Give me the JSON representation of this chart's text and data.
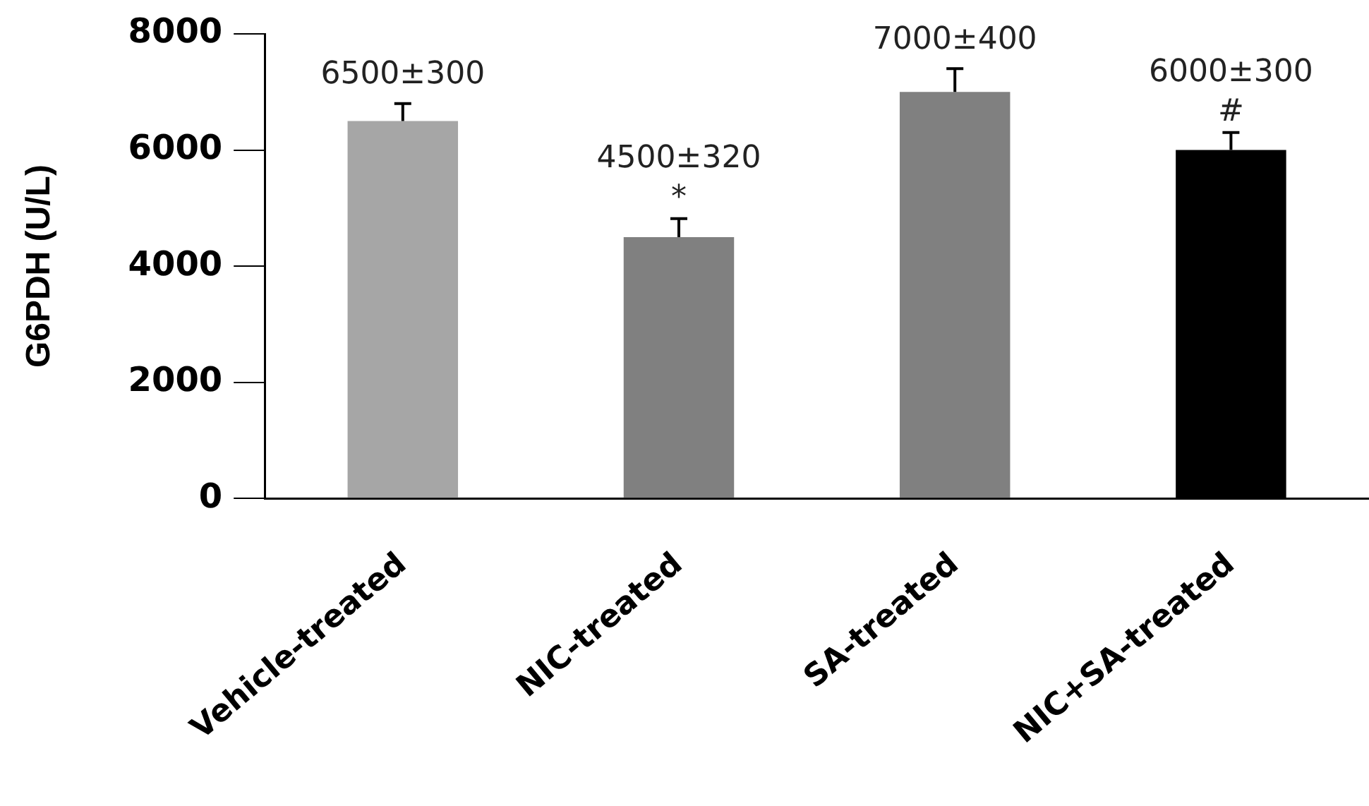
{
  "chart_data": {
    "type": "bar",
    "ylabel": "G6PDH (U/L)",
    "categories": [
      "Vehicle-treated",
      "NIC-treated",
      "SA-treated",
      "NIC+SA-treated"
    ],
    "values": [
      6500,
      4500,
      7000,
      6000
    ],
    "colors": [
      "#a6a6a6",
      "#808080",
      "#808080",
      "#000000"
    ],
    "errors": [
      300,
      320,
      400,
      300
    ],
    "value_labels": [
      "6500±300",
      "4500±320",
      "7000±400",
      "6000±300"
    ],
    "annotations": [
      {
        "text": "*",
        "x": "NIC-treated",
        "y": 4820
      },
      {
        "text": "#",
        "x": "NIC+SA-treated",
        "y": 6300
      }
    ],
    "ylim": [
      0,
      8000
    ],
    "yticks": [
      0,
      2000,
      4000,
      6000,
      8000
    ],
    "grid": false,
    "legend": false
  }
}
